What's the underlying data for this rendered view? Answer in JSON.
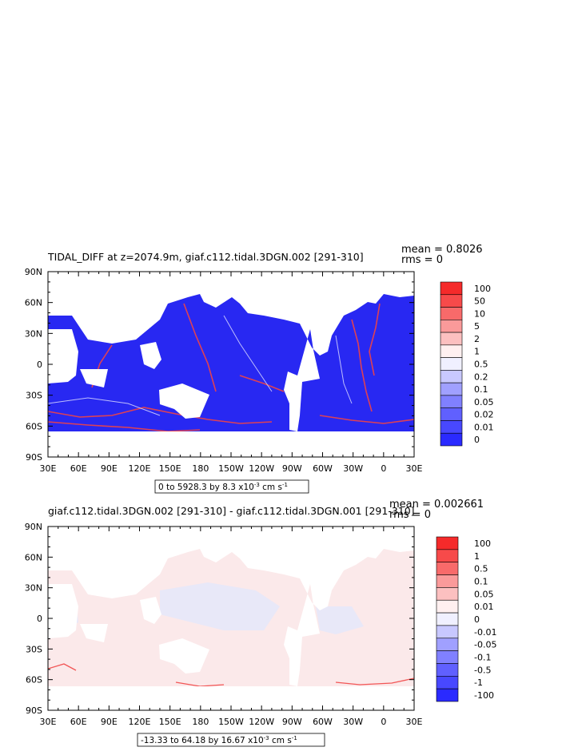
{
  "chart_data": [
    {
      "type": "heatmap",
      "title": "TIDAL_DIFF at z=2074.9m, giaf.c112.tidal.3DGN.002 [291-310]",
      "stats": {
        "mean": "mean = 0.8026",
        "rms": "rms = 0"
      },
      "x_ticks": [
        "30E",
        "60E",
        "90E",
        "120E",
        "150E",
        "180",
        "150W",
        "120W",
        "90W",
        "60W",
        "30W",
        "0",
        "30E"
      ],
      "y_ticks": [
        "90N",
        "60N",
        "30N",
        "0",
        "30S",
        "60S",
        "90S"
      ],
      "xlim": [
        30,
        390
      ],
      "ylim": [
        -90,
        90
      ],
      "range_label": "0 to 5928.3 by 8.3 x10",
      "range_exp": "-3",
      "range_unit": " cm s",
      "range_unit_exp": "-1",
      "colorbar": {
        "labels": [
          "100",
          "50",
          "10",
          "5",
          "2",
          "1",
          "0.5",
          "0.2",
          "0.1",
          "0.05",
          "0.02",
          "0.01",
          "0"
        ],
        "colors": [
          "#f52a2a",
          "#f74a4a",
          "#f86a6a",
          "#fa9a9a",
          "#fcc0c0",
          "#fff0f0",
          "#f0f0ff",
          "#c8c8ff",
          "#a0a0ff",
          "#8080ff",
          "#6060ff",
          "#4848ff",
          "#2a2aff"
        ]
      }
    },
    {
      "type": "heatmap",
      "title": "giaf.c112.tidal.3DGN.002 [291-310] - giaf.c112.tidal.3DGN.001 [291-310]",
      "stats": {
        "mean": "mean = 0.002661",
        "rms": "rms = 0"
      },
      "x_ticks": [
        "30E",
        "60E",
        "90E",
        "120E",
        "150E",
        "180",
        "150W",
        "120W",
        "90W",
        "60W",
        "30W",
        "0",
        "30E"
      ],
      "y_ticks": [
        "90N",
        "60N",
        "30N",
        "0",
        "30S",
        "60S",
        "90S"
      ],
      "xlim": [
        30,
        390
      ],
      "ylim": [
        -90,
        90
      ],
      "range_label": "-13.33 to 64.18 by 16.67 x10",
      "range_exp": "-3",
      "range_unit": " cm s",
      "range_unit_exp": "-1",
      "colorbar": {
        "labels": [
          "100",
          "1",
          "0.5",
          "0.1",
          "0.05",
          "0.01",
          "0",
          "-0.01",
          "-0.05",
          "-0.1",
          "-0.5",
          "-1",
          "-100"
        ],
        "colors": [
          "#f52a2a",
          "#f74a4a",
          "#f86a6a",
          "#fa9a9a",
          "#fcc0c0",
          "#fff0f0",
          "#f0f0ff",
          "#c8c8ff",
          "#a0a0ff",
          "#8080ff",
          "#6060ff",
          "#4848ff",
          "#2a2aff"
        ]
      }
    }
  ],
  "colors": {
    "ocean_top": "#2828f2",
    "ocean_bottom": "#fbe9ea",
    "ocean_bottom_blue": "#e8e8f8",
    "land": "#ffffff",
    "hotspot": "#f03c3c"
  }
}
